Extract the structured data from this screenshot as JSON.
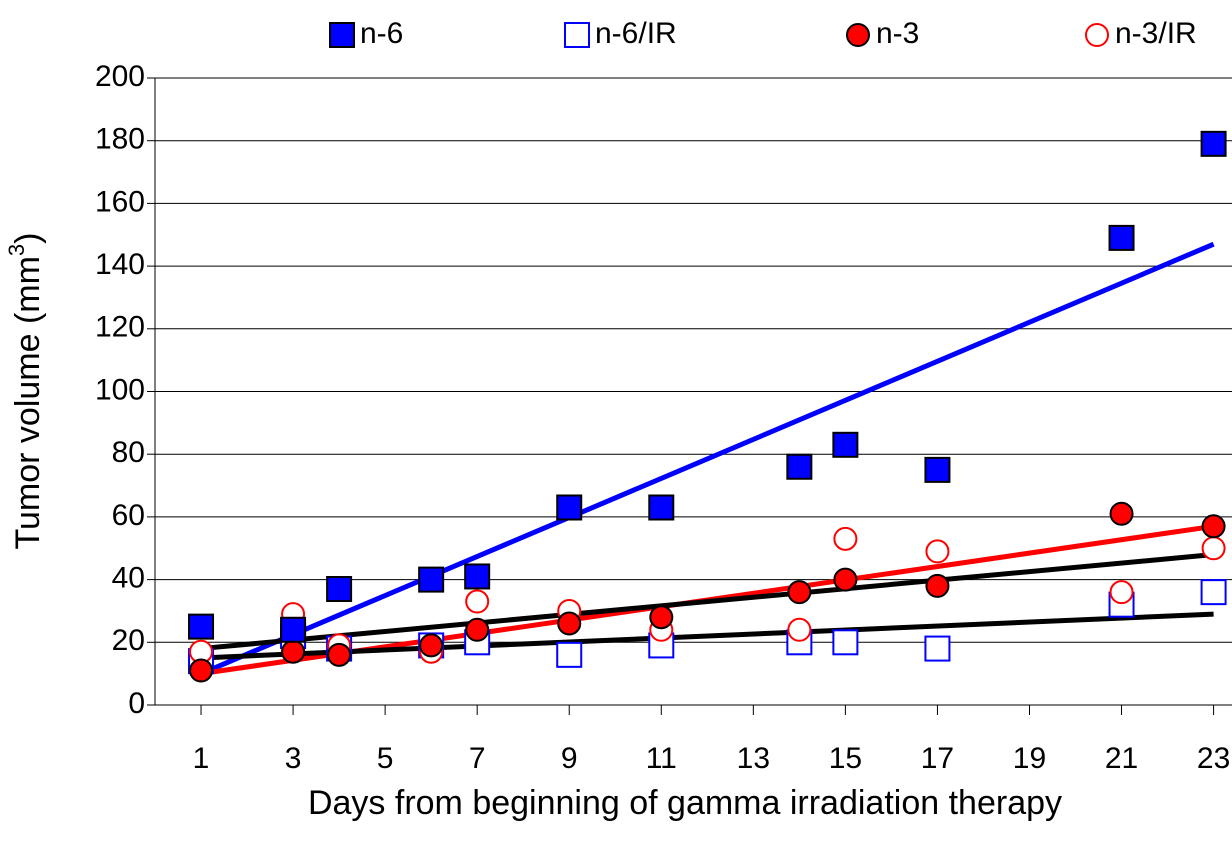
{
  "chart_data": {
    "type": "scatter",
    "x_label": "Days from beginning of gamma irradiation therapy",
    "y_label": {
      "text": "Tumor volume (mm",
      "sup": "3",
      "end": ")"
    },
    "xlim": [
      0,
      23.4
    ],
    "ylim": [
      0,
      200
    ],
    "xticks": [
      1,
      3,
      5,
      7,
      9,
      11,
      13,
      15,
      17,
      19,
      21,
      23
    ],
    "yticks": [
      0,
      20,
      40,
      60,
      80,
      100,
      120,
      140,
      160,
      180,
      200
    ],
    "grid": true,
    "series": [
      {
        "name": "n-6",
        "color": "#0000ff",
        "marker": "square",
        "filled": true,
        "x": [
          1,
          3,
          4,
          6,
          7,
          9,
          11,
          14,
          15,
          17,
          21,
          23
        ],
        "values": [
          25,
          24,
          37,
          40,
          41,
          63,
          63,
          76,
          83,
          75,
          149,
          179
        ]
      },
      {
        "name": "n-6/IR",
        "color": "#0000ff",
        "marker": "square",
        "filled": false,
        "x": [
          1,
          3,
          4,
          6,
          7,
          9,
          11,
          14,
          15,
          17,
          21,
          23
        ],
        "values": [
          14,
          22,
          18,
          19,
          20,
          16,
          19,
          20,
          20,
          18,
          32,
          36
        ]
      },
      {
        "name": "n-3",
        "color": "#ff0000",
        "marker": "circle",
        "filled": true,
        "x": [
          1,
          3,
          4,
          6,
          7,
          9,
          11,
          14,
          15,
          17,
          21,
          23
        ],
        "values": [
          11,
          17,
          16,
          19,
          24,
          26,
          28,
          36,
          40,
          38,
          61,
          57
        ]
      },
      {
        "name": "n-3/IR",
        "color": "#ff0000",
        "marker": "circle",
        "filled": false,
        "x": [
          1,
          3,
          4,
          6,
          7,
          9,
          11,
          14,
          15,
          17,
          21,
          23
        ],
        "values": [
          17,
          29,
          19,
          17,
          33,
          30,
          24,
          24,
          53,
          49,
          36,
          50
        ]
      }
    ],
    "trendlines": [
      {
        "color": "#0000ff",
        "x": [
          1,
          23
        ],
        "values": [
          10,
          147
        ]
      },
      {
        "color": "#ff0000",
        "x": [
          1,
          23
        ],
        "values": [
          10,
          57
        ]
      },
      {
        "color": "#000000",
        "x": [
          1,
          23
        ],
        "values": [
          18,
          48
        ]
      },
      {
        "color": "#000000",
        "x": [
          1,
          23
        ],
        "values": [
          15,
          29
        ]
      }
    ]
  }
}
